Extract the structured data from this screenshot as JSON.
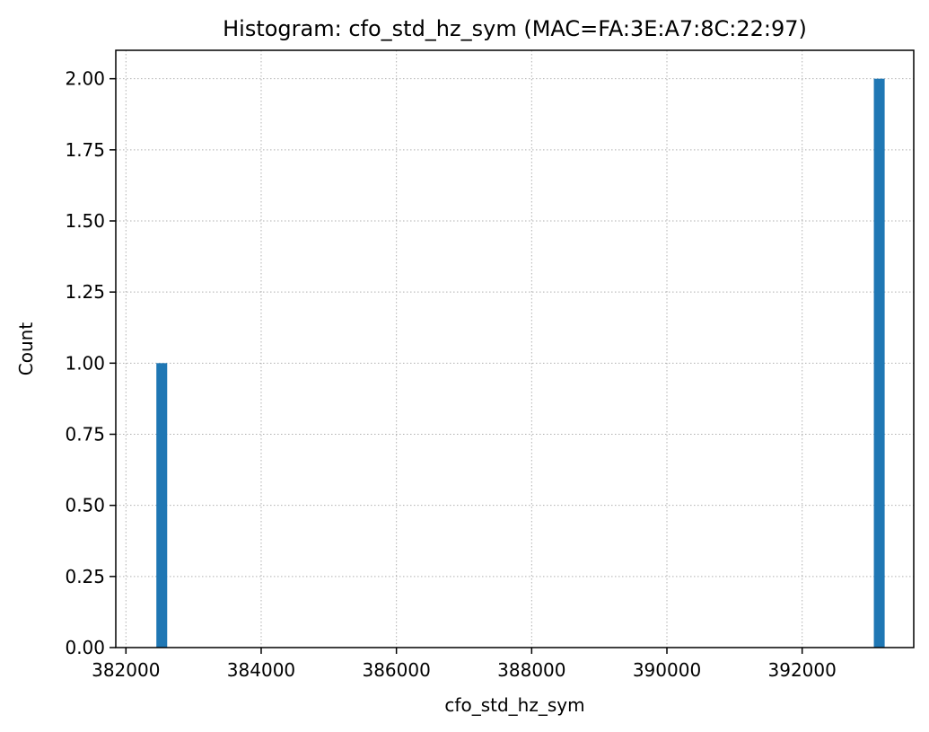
{
  "chart_data": {
    "type": "bar",
    "title": "Histogram: cfo_std_hz_sym (MAC=FA:3E:A7:8C:22:97)",
    "xlabel": "cfo_std_hz_sym",
    "ylabel": "Count",
    "xlim": [
      381850,
      393650
    ],
    "ylim": [
      0,
      2.1
    ],
    "x_ticks": [
      382000,
      384000,
      386000,
      388000,
      390000,
      392000
    ],
    "x_tick_labels": [
      "382000",
      "384000",
      "386000",
      "388000",
      "390000",
      "392000"
    ],
    "y_ticks": [
      0,
      0.25,
      0.5,
      0.75,
      1.0,
      1.25,
      1.5,
      1.75,
      2.0
    ],
    "y_tick_labels": [
      "0.00",
      "0.25",
      "0.50",
      "0.75",
      "1.00",
      "1.25",
      "1.50",
      "1.75",
      "2.00"
    ],
    "bins": [
      {
        "start": 382450,
        "end": 382610,
        "count": 1
      },
      {
        "start": 393060,
        "end": 393220,
        "count": 2
      }
    ],
    "grid": true,
    "grid_style": "dotted",
    "bar_color": "#1f77b4",
    "grid_color": "#b0b0b0"
  }
}
